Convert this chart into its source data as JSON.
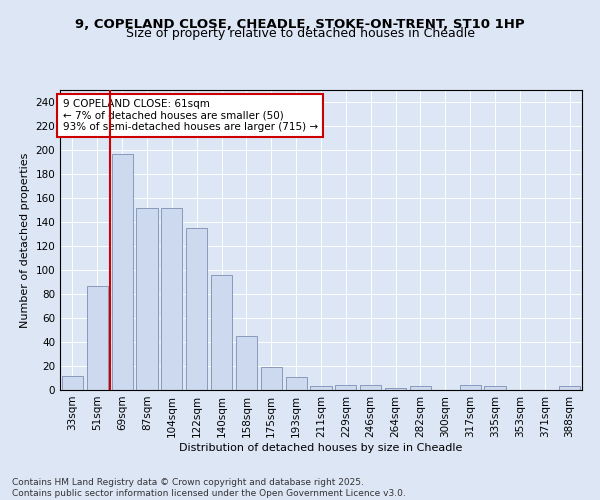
{
  "title_line1": "9, COPELAND CLOSE, CHEADLE, STOKE-ON-TRENT, ST10 1HP",
  "title_line2": "Size of property relative to detached houses in Cheadle",
  "xlabel": "Distribution of detached houses by size in Cheadle",
  "ylabel": "Number of detached properties",
  "bar_labels": [
    "33sqm",
    "51sqm",
    "69sqm",
    "87sqm",
    "104sqm",
    "122sqm",
    "140sqm",
    "158sqm",
    "175sqm",
    "193sqm",
    "211sqm",
    "229sqm",
    "246sqm",
    "264sqm",
    "282sqm",
    "300sqm",
    "317sqm",
    "335sqm",
    "353sqm",
    "371sqm",
    "388sqm"
  ],
  "bar_values": [
    12,
    87,
    197,
    152,
    152,
    135,
    96,
    45,
    19,
    11,
    3,
    4,
    4,
    2,
    3,
    0,
    4,
    3,
    0,
    0,
    3
  ],
  "bar_color": "#ccd9ee",
  "bar_edge_color": "#8899bb",
  "vline_color": "#cc0000",
  "vline_x_index": 1.5,
  "annotation_text": "9 COPELAND CLOSE: 61sqm\n← 7% of detached houses are smaller (50)\n93% of semi-detached houses are larger (715) →",
  "annotation_box_color": "#ffffff",
  "annotation_box_edge": "#cc0000",
  "ylim": [
    0,
    250
  ],
  "yticks": [
    0,
    20,
    40,
    60,
    80,
    100,
    120,
    140,
    160,
    180,
    200,
    220,
    240
  ],
  "background_color": "#dde6f5",
  "grid_color": "#ffffff",
  "footer_line1": "Contains HM Land Registry data © Crown copyright and database right 2025.",
  "footer_line2": "Contains public sector information licensed under the Open Government Licence v3.0.",
  "title_fontsize": 9.5,
  "subtitle_fontsize": 9,
  "axis_label_fontsize": 8,
  "tick_fontsize": 7.5,
  "annotation_fontsize": 7.5,
  "footer_fontsize": 6.5
}
